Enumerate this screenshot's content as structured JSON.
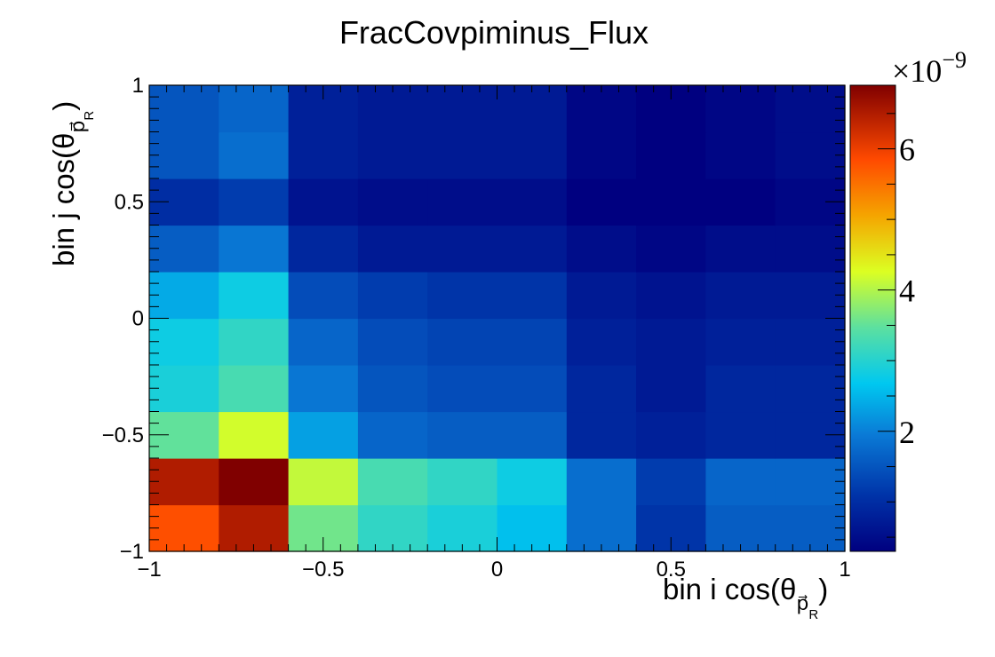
{
  "chart_data": {
    "type": "heatmap",
    "title": "FracCovpiminus_Flux",
    "xlabel": "bin i cos(θ",
    "xlabel_sub": "p⃗",
    "xlabel_subsub": "R",
    "ylabel": "bin j cos(θ",
    "ylabel_sub": "p⃗",
    "ylabel_subsub": "R",
    "xlim": [
      -1,
      1
    ],
    "ylim": [
      -1,
      1
    ],
    "x_edges": [
      -1,
      -0.8,
      -0.6,
      -0.4,
      -0.2,
      0,
      0.2,
      0.4,
      0.6,
      0.8,
      1
    ],
    "y_edges": [
      -1,
      -0.8,
      -0.6,
      -0.4,
      -0.2,
      0,
      0.2,
      0.4,
      0.6,
      0.8,
      1
    ],
    "x_ticks": [
      -1,
      -0.5,
      0,
      0.5,
      1
    ],
    "x_tick_labels": [
      "−1",
      "−0.5",
      "0",
      "0.5",
      "1"
    ],
    "y_ticks": [
      -1,
      -0.5,
      0,
      0.5,
      1
    ],
    "y_tick_labels": [
      "−1",
      "−0.5",
      "0",
      "0.5",
      "1"
    ],
    "z_unit_label": "×10",
    "z_unit_exponent": "−9",
    "z_range": [
      0.3,
      6.9
    ],
    "z_ticks": [
      2,
      4,
      6
    ],
    "z_tick_labels": [
      "2",
      "4",
      "6"
    ],
    "grid": false,
    "values_1e9": [
      [
        5.8,
        6.5,
        3.6,
        3.1,
        2.9,
        2.6,
        1.8,
        1.1,
        1.6,
        1.6
      ],
      [
        6.5,
        6.9,
        4.1,
        3.3,
        3.1,
        2.8,
        1.8,
        1.2,
        1.7,
        1.7
      ],
      [
        3.5,
        4.2,
        2.3,
        1.7,
        1.6,
        1.6,
        0.9,
        0.8,
        0.9,
        0.9
      ],
      [
        2.9,
        3.3,
        1.9,
        1.5,
        1.4,
        1.4,
        0.9,
        0.7,
        0.9,
        0.9
      ],
      [
        2.8,
        3.1,
        1.7,
        1.4,
        1.3,
        1.3,
        0.8,
        0.7,
        0.8,
        0.8
      ],
      [
        2.4,
        2.8,
        1.4,
        1.2,
        1.1,
        1.1,
        0.7,
        0.6,
        0.7,
        0.7
      ],
      [
        1.6,
        1.9,
        0.9,
        0.7,
        0.7,
        0.7,
        0.5,
        0.4,
        0.5,
        0.5
      ],
      [
        1.0,
        1.2,
        0.6,
        0.5,
        0.5,
        0.5,
        0.3,
        0.3,
        0.3,
        0.4
      ],
      [
        1.5,
        1.8,
        0.8,
        0.7,
        0.7,
        0.7,
        0.4,
        0.3,
        0.4,
        0.5
      ],
      [
        1.5,
        1.7,
        0.8,
        0.7,
        0.7,
        0.7,
        0.4,
        0.3,
        0.4,
        0.5
      ]
    ]
  }
}
